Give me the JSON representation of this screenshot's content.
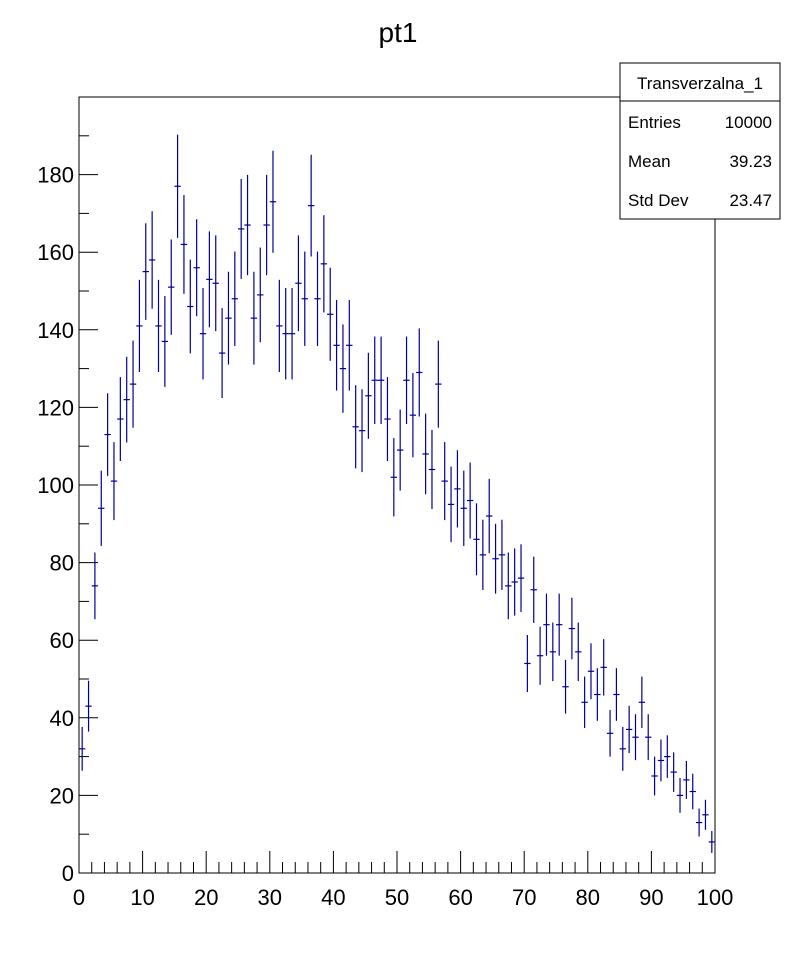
{
  "chart_data": {
    "type": "histogram",
    "title": "pt1",
    "xlabel": "",
    "ylabel": "",
    "xlim": [
      0,
      100
    ],
    "ylim": [
      0,
      200
    ],
    "x_ticks": [
      0,
      10,
      20,
      30,
      40,
      50,
      60,
      70,
      80,
      90,
      100
    ],
    "y_ticks": [
      0,
      20,
      40,
      60,
      80,
      100,
      120,
      140,
      160,
      180
    ],
    "x_tick_labels": [
      "0",
      "10",
      "20",
      "30",
      "40",
      "50",
      "60",
      "70",
      "80",
      "90",
      "100"
    ],
    "y_tick_labels": [
      "0",
      "20",
      "40",
      "60",
      "80",
      "100",
      "120",
      "140",
      "160",
      "180"
    ],
    "grid": false,
    "marker_color": "#000099",
    "bin_width": 1,
    "x": [
      0.5,
      1.5,
      2.5,
      3.5,
      4.5,
      5.5,
      6.5,
      7.5,
      8.5,
      9.5,
      10.5,
      11.5,
      12.5,
      13.5,
      14.5,
      15.5,
      16.5,
      17.5,
      18.5,
      19.5,
      20.5,
      21.5,
      22.5,
      23.5,
      24.5,
      25.5,
      26.5,
      27.5,
      28.5,
      29.5,
      30.5,
      31.5,
      32.5,
      33.5,
      34.5,
      35.5,
      36.5,
      37.5,
      38.5,
      39.5,
      40.5,
      41.5,
      42.5,
      43.5,
      44.5,
      45.5,
      46.5,
      47.5,
      48.5,
      49.5,
      50.5,
      51.5,
      52.5,
      53.5,
      54.5,
      55.5,
      56.5,
      57.5,
      58.5,
      59.5,
      60.5,
      61.5,
      62.5,
      63.5,
      64.5,
      65.5,
      66.5,
      67.5,
      68.5,
      69.5,
      70.5,
      71.5,
      72.5,
      73.5,
      74.5,
      75.5,
      76.5,
      77.5,
      78.5,
      79.5,
      80.5,
      81.5,
      82.5,
      83.5,
      84.5,
      85.5,
      86.5,
      87.5,
      88.5,
      89.5,
      90.5,
      91.5,
      92.5,
      93.5,
      94.5,
      95.5,
      96.5,
      97.5,
      98.5,
      99.5
    ],
    "values": [
      32,
      43,
      74,
      94,
      113,
      101,
      117,
      122,
      126,
      141,
      155,
      158,
      141,
      137,
      151,
      177,
      162,
      146,
      156,
      139,
      153,
      152,
      134,
      143,
      148,
      166,
      167,
      143,
      149,
      167,
      173,
      141,
      139,
      139,
      152,
      148,
      172,
      148,
      157,
      144,
      136,
      130,
      136,
      115,
      114,
      123,
      127,
      127,
      117,
      102,
      109,
      127,
      118,
      129,
      108,
      104,
      126,
      101,
      95,
      99,
      94,
      96,
      86,
      82,
      92,
      81,
      82,
      74,
      75,
      76,
      54,
      73,
      56,
      64,
      57,
      64,
      48,
      63,
      57,
      44,
      52,
      46,
      53,
      36,
      46,
      32,
      37,
      35,
      44,
      35,
      25,
      29,
      30,
      26,
      20,
      24,
      21,
      13,
      15,
      8
    ],
    "stats_box": {
      "title": "Transverzalna_1",
      "rows": [
        {
          "label": "Entries",
          "value": "10000"
        },
        {
          "label": "Mean",
          "value": "39.23"
        },
        {
          "label": "Std Dev",
          "value": "23.47"
        }
      ]
    }
  }
}
